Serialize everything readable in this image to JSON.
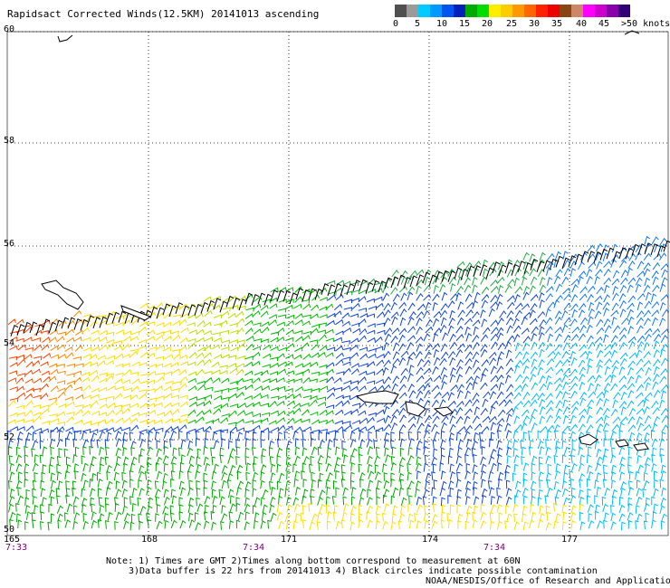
{
  "title": "Rapidsact Corrected Winds(12.5KM) 20141013 ascending",
  "legend": {
    "colors": [
      "#505050",
      "#9a9a9a",
      "#00ccff",
      "#0099ff",
      "#0055ee",
      "#0022bb",
      "#00aa00",
      "#00dd00",
      "#ffee00",
      "#ffcc00",
      "#ff9900",
      "#ff6600",
      "#ff2200",
      "#ee0000",
      "#8b4513",
      "#cc8866",
      "#ff00ff",
      "#cc00cc",
      "#8800aa",
      "#330077"
    ],
    "labels": [
      "0",
      "5",
      "10",
      "15",
      "20",
      "25",
      "30",
      "35",
      "40",
      "45",
      ">50 knots"
    ]
  },
  "lat_labels": [
    "60",
    "58",
    "56",
    "54",
    "52",
    "50"
  ],
  "lon_labels": [
    "165",
    "168",
    "171",
    "174",
    "177"
  ],
  "time_labels": [
    "7:33",
    "7:34",
    "7:34"
  ],
  "notes": [
    "Note: 1) Times are GMT 2)Times along bottom correspond to measurement at 60N",
    "3)Data buffer is 22 hrs from 20141013 4) Black circles indicate possible contamination",
    "NOAA/NESDIS/Office of Research and Applications"
  ]
}
